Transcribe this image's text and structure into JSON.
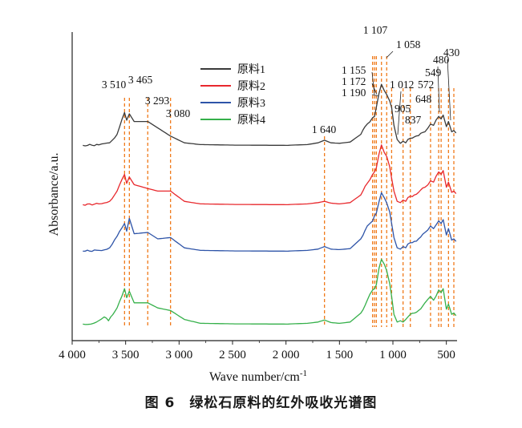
{
  "caption": "图 6　绿松石原料的红外吸收光谱图",
  "chart_data": {
    "type": "line",
    "xlabel": "Wave number/cm",
    "xlabel_sup": "-1",
    "ylabel": "Absorbance/a.u.",
    "xlim": [
      4000,
      400
    ],
    "x_reversed": true,
    "grid": false,
    "legend_position": "top-center",
    "x_ticks": [
      {
        "value": 4000,
        "label": "4 000"
      },
      {
        "value": 3500,
        "label": "3 500"
      },
      {
        "value": 3000,
        "label": "3 000"
      },
      {
        "value": 2500,
        "label": "2 500"
      },
      {
        "value": 2000,
        "label": "2 000"
      },
      {
        "value": 1500,
        "label": "1 500"
      },
      {
        "value": 1000,
        "label": "1 000"
      },
      {
        "value": 500,
        "label": "500"
      }
    ],
    "series": [
      {
        "name": "原料1",
        "color": "#3a3a3a",
        "offset": 3.0,
        "points": [
          [
            3900,
            0.02
          ],
          [
            3750,
            0.04
          ],
          [
            3650,
            0.12
          ],
          [
            3580,
            0.45
          ],
          [
            3510,
            1.3
          ],
          [
            3490,
            1.0
          ],
          [
            3465,
            1.25
          ],
          [
            3420,
            0.95
          ],
          [
            3293,
            0.95
          ],
          [
            3200,
            0.7
          ],
          [
            3080,
            0.38
          ],
          [
            2950,
            0.12
          ],
          [
            2800,
            0.05
          ],
          [
            2500,
            0.03
          ],
          [
            2000,
            0.02
          ],
          [
            1800,
            0.05
          ],
          [
            1700,
            0.12
          ],
          [
            1640,
            0.22
          ],
          [
            1580,
            0.12
          ],
          [
            1500,
            0.1
          ],
          [
            1400,
            0.15
          ],
          [
            1300,
            0.45
          ],
          [
            1240,
            0.85
          ],
          [
            1190,
            1.1
          ],
          [
            1172,
            1.15
          ],
          [
            1155,
            1.5
          ],
          [
            1130,
            2.05
          ],
          [
            1107,
            2.4
          ],
          [
            1080,
            2.15
          ],
          [
            1058,
            2.0
          ],
          [
            1030,
            1.75
          ],
          [
            1012,
            1.5
          ],
          [
            990,
            0.8
          ],
          [
            960,
            0.25
          ],
          [
            930,
            0.1
          ],
          [
            905,
            0.18
          ],
          [
            880,
            0.12
          ],
          [
            860,
            0.25
          ],
          [
            837,
            0.3
          ],
          [
            800,
            0.35
          ],
          [
            760,
            0.4
          ],
          [
            700,
            0.55
          ],
          [
            648,
            0.85
          ],
          [
            620,
            0.8
          ],
          [
            572,
            1.15
          ],
          [
            549,
            1.05
          ],
          [
            530,
            1.2
          ],
          [
            500,
            0.75
          ],
          [
            480,
            0.95
          ],
          [
            450,
            0.55
          ],
          [
            430,
            0.6
          ],
          [
            410,
            0.5
          ]
        ]
      },
      {
        "name": "原料2",
        "color": "#e8282d",
        "offset": 2.0,
        "points": [
          [
            3900,
            0.02
          ],
          [
            3750,
            0.05
          ],
          [
            3650,
            0.15
          ],
          [
            3580,
            0.55
          ],
          [
            3510,
            1.2
          ],
          [
            3490,
            0.85
          ],
          [
            3465,
            1.1
          ],
          [
            3420,
            0.8
          ],
          [
            3293,
            0.65
          ],
          [
            3200,
            0.55
          ],
          [
            3080,
            0.55
          ],
          [
            2950,
            0.15
          ],
          [
            2800,
            0.05
          ],
          [
            2500,
            0.03
          ],
          [
            2000,
            0.02
          ],
          [
            1800,
            0.05
          ],
          [
            1700,
            0.1
          ],
          [
            1640,
            0.15
          ],
          [
            1580,
            0.08
          ],
          [
            1500,
            0.05
          ],
          [
            1400,
            0.1
          ],
          [
            1300,
            0.4
          ],
          [
            1240,
            0.85
          ],
          [
            1190,
            1.2
          ],
          [
            1172,
            1.3
          ],
          [
            1155,
            1.45
          ],
          [
            1130,
            2.0
          ],
          [
            1107,
            2.35
          ],
          [
            1080,
            2.05
          ],
          [
            1058,
            1.9
          ],
          [
            1030,
            1.5
          ],
          [
            1012,
            1.05
          ],
          [
            990,
            0.55
          ],
          [
            960,
            0.15
          ],
          [
            930,
            0.1
          ],
          [
            905,
            0.2
          ],
          [
            880,
            0.15
          ],
          [
            860,
            0.3
          ],
          [
            837,
            0.35
          ],
          [
            800,
            0.4
          ],
          [
            760,
            0.5
          ],
          [
            700,
            0.7
          ],
          [
            648,
            0.95
          ],
          [
            620,
            0.9
          ],
          [
            572,
            1.3
          ],
          [
            549,
            1.2
          ],
          [
            530,
            1.35
          ],
          [
            500,
            0.7
          ],
          [
            480,
            0.9
          ],
          [
            450,
            0.5
          ],
          [
            430,
            0.55
          ],
          [
            410,
            0.45
          ]
        ]
      },
      {
        "name": "原料3",
        "color": "#2e54a8",
        "offset": 1.0,
        "points": [
          [
            3900,
            0.02
          ],
          [
            3750,
            0.05
          ],
          [
            3650,
            0.15
          ],
          [
            3580,
            0.6
          ],
          [
            3510,
            1.1
          ],
          [
            3490,
            0.8
          ],
          [
            3465,
            1.3
          ],
          [
            3420,
            0.7
          ],
          [
            3293,
            0.75
          ],
          [
            3200,
            0.5
          ],
          [
            3080,
            0.55
          ],
          [
            2950,
            0.15
          ],
          [
            2800,
            0.05
          ],
          [
            2500,
            0.03
          ],
          [
            2000,
            0.02
          ],
          [
            1800,
            0.05
          ],
          [
            1700,
            0.1
          ],
          [
            1640,
            0.2
          ],
          [
            1580,
            0.1
          ],
          [
            1500,
            0.08
          ],
          [
            1400,
            0.12
          ],
          [
            1300,
            0.5
          ],
          [
            1240,
            1.0
          ],
          [
            1190,
            1.2
          ],
          [
            1172,
            1.4
          ],
          [
            1155,
            1.5
          ],
          [
            1130,
            1.95
          ],
          [
            1107,
            2.3
          ],
          [
            1080,
            2.1
          ],
          [
            1058,
            1.9
          ],
          [
            1030,
            1.55
          ],
          [
            1012,
            1.1
          ],
          [
            990,
            0.55
          ],
          [
            960,
            0.15
          ],
          [
            930,
            0.1
          ],
          [
            905,
            0.2
          ],
          [
            880,
            0.15
          ],
          [
            860,
            0.3
          ],
          [
            837,
            0.35
          ],
          [
            800,
            0.4
          ],
          [
            760,
            0.5
          ],
          [
            700,
            0.75
          ],
          [
            648,
            1.0
          ],
          [
            620,
            0.9
          ],
          [
            572,
            1.2
          ],
          [
            549,
            1.1
          ],
          [
            530,
            1.25
          ],
          [
            500,
            0.65
          ],
          [
            480,
            0.9
          ],
          [
            450,
            0.45
          ],
          [
            430,
            0.5
          ],
          [
            410,
            0.4
          ]
        ]
      },
      {
        "name": "原料4",
        "color": "#35b04a",
        "offset": 0.0,
        "points": [
          [
            3900,
            0.02
          ],
          [
            3800,
            0.05
          ],
          [
            3700,
            0.3
          ],
          [
            3660,
            0.15
          ],
          [
            3580,
            0.65
          ],
          [
            3510,
            1.4
          ],
          [
            3490,
            1.05
          ],
          [
            3465,
            1.3
          ],
          [
            3420,
            0.85
          ],
          [
            3293,
            0.85
          ],
          [
            3200,
            0.65
          ],
          [
            3080,
            0.55
          ],
          [
            2950,
            0.2
          ],
          [
            2800,
            0.05
          ],
          [
            2500,
            0.03
          ],
          [
            2000,
            0.02
          ],
          [
            1800,
            0.05
          ],
          [
            1700,
            0.1
          ],
          [
            1640,
            0.18
          ],
          [
            1580,
            0.08
          ],
          [
            1500,
            0.05
          ],
          [
            1400,
            0.1
          ],
          [
            1300,
            0.45
          ],
          [
            1240,
            0.95
          ],
          [
            1190,
            1.35
          ],
          [
            1172,
            1.4
          ],
          [
            1155,
            1.55
          ],
          [
            1130,
            2.2
          ],
          [
            1107,
            2.55
          ],
          [
            1080,
            2.35
          ],
          [
            1058,
            2.1
          ],
          [
            1030,
            1.6
          ],
          [
            1012,
            1.1
          ],
          [
            990,
            0.4
          ],
          [
            960,
            0.1
          ],
          [
            930,
            0.15
          ],
          [
            905,
            0.1
          ],
          [
            880,
            0.2
          ],
          [
            860,
            0.3
          ],
          [
            837,
            0.4
          ],
          [
            800,
            0.45
          ],
          [
            760,
            0.55
          ],
          [
            700,
            0.85
          ],
          [
            648,
            1.1
          ],
          [
            620,
            0.95
          ],
          [
            572,
            1.35
          ],
          [
            549,
            1.25
          ],
          [
            530,
            1.4
          ],
          [
            500,
            0.6
          ],
          [
            480,
            0.8
          ],
          [
            450,
            0.4
          ],
          [
            430,
            0.45
          ],
          [
            410,
            0.35
          ]
        ]
      }
    ],
    "marker_lines": [
      3510,
      3465,
      3293,
      3080,
      1640,
      1190,
      1172,
      1155,
      1107,
      1058,
      1012,
      905,
      837,
      648,
      572,
      549,
      480,
      430
    ],
    "annotations": [
      {
        "x": 3510,
        "label": "3 510"
      },
      {
        "x": 3465,
        "label": "3 465"
      },
      {
        "x": 3293,
        "label": "3 293"
      },
      {
        "x": 3080,
        "label": "3 080"
      },
      {
        "x": 1640,
        "label": "1 640"
      },
      {
        "x": 1107,
        "label": "1 107"
      },
      {
        "x": 1058,
        "label": "1 058"
      },
      {
        "x": 1155,
        "label": "1 155"
      },
      {
        "x": 1172,
        "label": "1 172"
      },
      {
        "x": 1190,
        "label": "1 190"
      },
      {
        "x": 1012,
        "label": "1 012"
      },
      {
        "x": 905,
        "label": "905"
      },
      {
        "x": 837,
        "label": "837"
      },
      {
        "x": 648,
        "label": "648"
      },
      {
        "x": 572,
        "label": "572"
      },
      {
        "x": 549,
        "label": "549"
      },
      {
        "x": 480,
        "label": "480"
      },
      {
        "x": 430,
        "label": "430"
      }
    ]
  }
}
